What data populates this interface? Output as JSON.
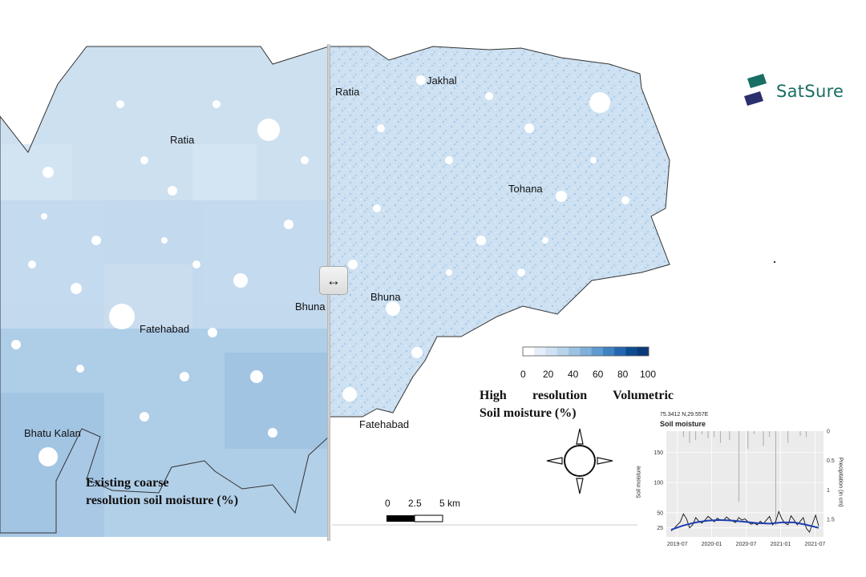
{
  "brand": {
    "name": "SatSure",
    "logo_icon": "satsure-logo-icon"
  },
  "colors": {
    "coarse_light": "#cde0f0",
    "coarse_mid": "#b6d2ea",
    "coarse_dark": "#9dc3e2",
    "hires_base": "#c9def0",
    "accent_brand": "#1a6e63",
    "accent_brand_dark": "#2a2f6e",
    "series_blue": "#1f3fb0"
  },
  "left_panel": {
    "caption_line1": "Existing coarse",
    "caption_line2": "resolution soil moisture (%)",
    "places": [
      "Ratia",
      "Fatehabad",
      "Bhuna",
      "Bhatu Kalan"
    ]
  },
  "right_panel": {
    "caption_line1": "High resolution Volumetric",
    "caption_line2": "Soil moisture (%)",
    "places": [
      "Ratia",
      "Jakhal",
      "Tohana",
      "Bhuna",
      "Fatehabad"
    ]
  },
  "slider": {
    "icon": "left-right-arrow-icon",
    "glyph": "↔"
  },
  "legend": {
    "ticks": [
      "0",
      "20",
      "40",
      "60",
      "80",
      "100"
    ],
    "ramp": [
      "#ffffff",
      "#e4eef8",
      "#cfe1f2",
      "#b8d3ea",
      "#9cc2e2",
      "#7fb0da",
      "#5f9bd0",
      "#3f82c2",
      "#2567ae",
      "#0c4c93",
      "#0a3a78"
    ]
  },
  "scale_bar": {
    "labels": [
      "0",
      "2.5",
      "5 km"
    ]
  },
  "compass": {
    "icon": "compass-rose-icon"
  },
  "inset_chart": {
    "coords": "75.3412 N,29.557E",
    "title": "Soil moisture",
    "ylabel": "Soil moisture",
    "ylabel_right": "Precipitation (in cm)"
  },
  "chart_data": {
    "type": "line",
    "title": "Soil moisture",
    "xlabel": "",
    "ylabel": "Soil moisture",
    "ylabel_right": "Precipitation (in cm)",
    "x_ticks": [
      "2019-07",
      "2020-01",
      "2020-07",
      "2021-01",
      "2021-07"
    ],
    "y_ticks": [
      "25",
      "50",
      "100",
      "150"
    ],
    "y2_ticks": [
      "0",
      "0.5",
      "1",
      "1.5"
    ],
    "ylim": [
      10,
      185
    ],
    "y2lim": [
      0,
      1.8
    ],
    "grid": true,
    "series": [
      {
        "x": [
          0,
          0.5,
          1,
          1.5,
          2,
          2.5,
          3,
          3.5,
          4,
          4.5,
          5,
          5.5,
          6,
          6.5,
          7,
          7.5,
          8,
          8.5,
          9,
          9.5,
          10,
          10.5,
          11,
          11.5,
          12,
          12.5,
          13,
          13.5,
          14,
          14.5,
          15,
          15.5,
          16,
          16.5,
          17,
          17.5,
          18,
          18.5,
          19,
          19.5,
          20,
          20.5,
          21,
          21.5,
          22,
          22.5,
          23,
          23.5,
          24
        ],
        "values": [
          20,
          24,
          30,
          35,
          48,
          40,
          25,
          30,
          42,
          36,
          33,
          38,
          44,
          40,
          35,
          41,
          38,
          37,
          43,
          39,
          36,
          34,
          42,
          38,
          40,
          35,
          31,
          33,
          30,
          36,
          32,
          38,
          44,
          30,
          35,
          52,
          40,
          33,
          30,
          45,
          38,
          30,
          36,
          42,
          24,
          18,
          32,
          46,
          28
        ]
      },
      {
        "x": [
          0,
          2,
          4,
          6,
          8,
          10,
          12,
          14,
          16,
          18,
          20,
          22,
          24
        ],
        "values": [
          22,
          29,
          34,
          37,
          38,
          37,
          35,
          33,
          32,
          34,
          34,
          30,
          25
        ]
      }
    ],
    "precipitation": {
      "x": [
        2,
        3,
        4,
        5,
        6,
        7,
        8,
        9.5,
        11,
        12.5,
        13.5,
        15,
        16,
        17,
        19,
        21,
        22
      ],
      "values": [
        0.1,
        0.2,
        0.15,
        0.05,
        0.12,
        0.1,
        0.2,
        0.15,
        1.2,
        0.3,
        0.05,
        0.25,
        0.1,
        1.6,
        0.2,
        0.08,
        0.1
      ]
    }
  }
}
